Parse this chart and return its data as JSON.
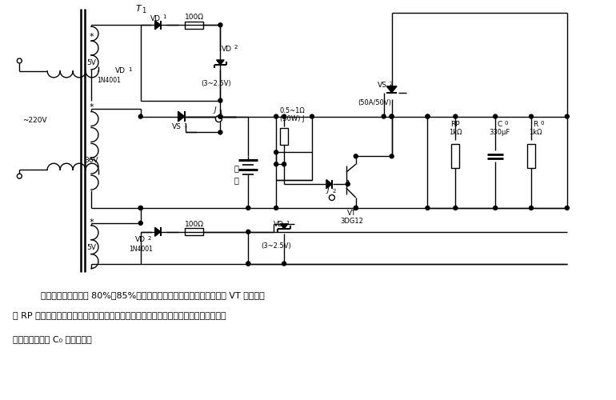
{
  "bg_color": "#ffffff",
  "line_color": "#000000",
  "text_color": "#000000",
  "fig_width": 7.7,
  "fig_height": 5.0,
  "caption_line1": "为使电池充电量达到 80%～85%时减少充电电流、保护电池、用晶体管 VT 和可调电",
  "caption_line2": "阻 RP 组成电压检测电路进行自动限流。为避免因大电流充电时电池端电压瞬间升高而误",
  "caption_line3": "测。检测电压从 C₀ 两端取样。"
}
